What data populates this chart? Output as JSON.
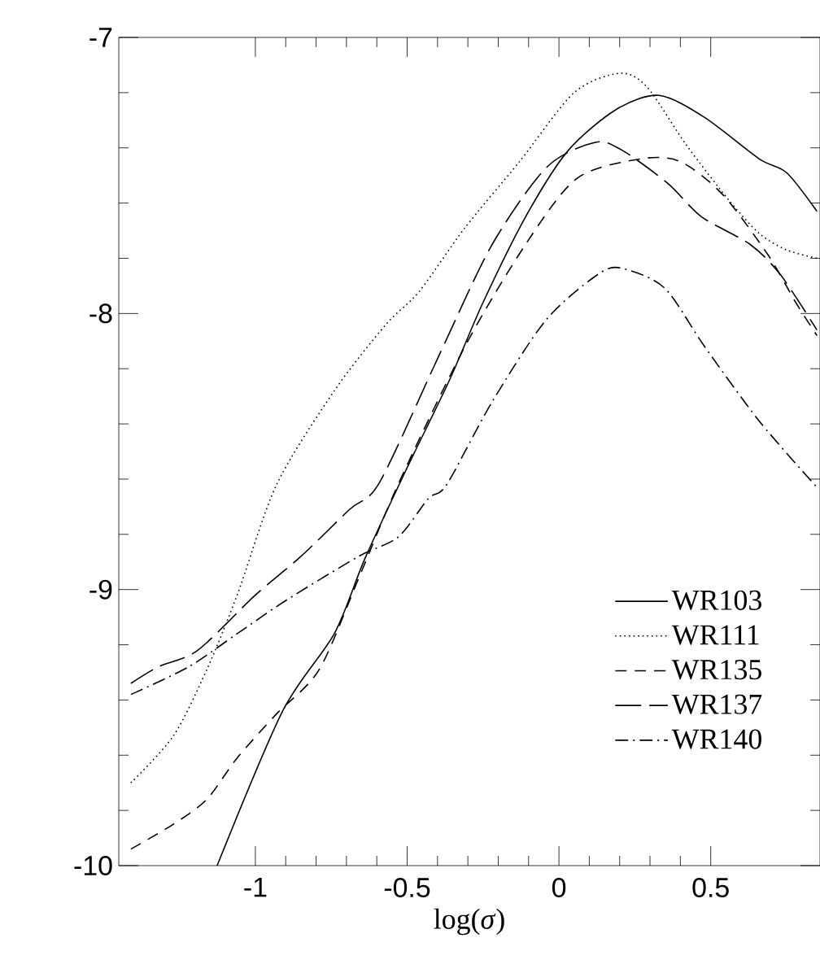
{
  "chart_data": {
    "type": "line",
    "xlabel": "log(*σ*)",
    "xlim": [
      -1.45,
      0.86
    ],
    "ylim": [
      -10,
      -7
    ],
    "xticks": [
      -1,
      -0.5,
      0,
      0.5
    ],
    "yticks": [
      -10,
      -9,
      -8,
      -7
    ],
    "legend": "bottom right",
    "marker": "none",
    "series": [
      {
        "name": "WR103",
        "color": "#000000",
        "line_style": "solid",
        "x": [
          -1.126,
          -0.91,
          -0.74,
          -0.64,
          -0.505,
          -0.36,
          -0.25,
          -0.11,
          0.03,
          0.19,
          0.33,
          0.48,
          0.66,
          0.75,
          0.85
        ],
        "values": [
          -10,
          -9.44,
          -9.16,
          -8.89,
          -8.57,
          -8.24,
          -7.96,
          -7.65,
          -7.41,
          -7.26,
          -7.21,
          -7.29,
          -7.44,
          -7.49,
          -7.63
        ]
      },
      {
        "name": "WR111",
        "color": "#000000",
        "line_style": "dotted",
        "x": [
          -1.41,
          -1.27,
          -1.16,
          -1.06,
          -0.93,
          -0.74,
          -0.57,
          -0.46,
          -0.31,
          -0.13,
          0.05,
          0.2,
          0.29,
          0.42,
          0.56,
          0.66,
          0.75,
          0.85
        ],
        "values": [
          -9.7,
          -9.53,
          -9.29,
          -9.02,
          -8.62,
          -8.28,
          -8.04,
          -7.92,
          -7.69,
          -7.45,
          -7.2,
          -7.13,
          -7.18,
          -7.39,
          -7.59,
          -7.71,
          -7.77,
          -7.8
        ]
      },
      {
        "name": "WR135",
        "color": "#000000",
        "line_style": "dashed",
        "x": [
          -1.41,
          -1.27,
          -1.16,
          -1.06,
          -0.93,
          -0.79,
          -0.66,
          -0.53,
          -0.31,
          -0.11,
          0.06,
          0.27,
          0.4,
          0.54,
          0.69,
          0.78,
          0.85
        ],
        "values": [
          -9.94,
          -9.85,
          -9.76,
          -9.61,
          -9.45,
          -9.29,
          -8.96,
          -8.62,
          -8.12,
          -7.75,
          -7.51,
          -7.44,
          -7.45,
          -7.57,
          -7.79,
          -7.96,
          -8.08
        ]
      },
      {
        "name": "WR137",
        "color": "#000000",
        "line_style": "long dashed",
        "x": [
          -1.41,
          -1.32,
          -1.19,
          -1.0,
          -0.85,
          -0.69,
          -0.59,
          -0.39,
          -0.22,
          -0.04,
          0.12,
          0.21,
          0.36,
          0.47,
          0.63,
          0.73,
          0.85
        ],
        "values": [
          -9.34,
          -9.28,
          -9.22,
          -9.02,
          -8.88,
          -8.71,
          -8.61,
          -8.14,
          -7.75,
          -7.47,
          -7.38,
          -7.41,
          -7.53,
          -7.65,
          -7.75,
          -7.86,
          -8.06
        ]
      },
      {
        "name": "WR140",
        "color": "#000000",
        "line_style": "dash dot",
        "x": [
          -1.41,
          -1.22,
          -1.06,
          -0.9,
          -0.66,
          -0.53,
          -0.43,
          -0.37,
          -0.22,
          -0.04,
          0.14,
          0.22,
          0.35,
          0.48,
          0.66,
          0.85
        ],
        "values": [
          -9.38,
          -9.28,
          -9.16,
          -9.04,
          -8.88,
          -8.81,
          -8.67,
          -8.62,
          -8.32,
          -8.02,
          -7.85,
          -7.84,
          -7.91,
          -8.12,
          -8.39,
          -8.63
        ]
      }
    ]
  }
}
